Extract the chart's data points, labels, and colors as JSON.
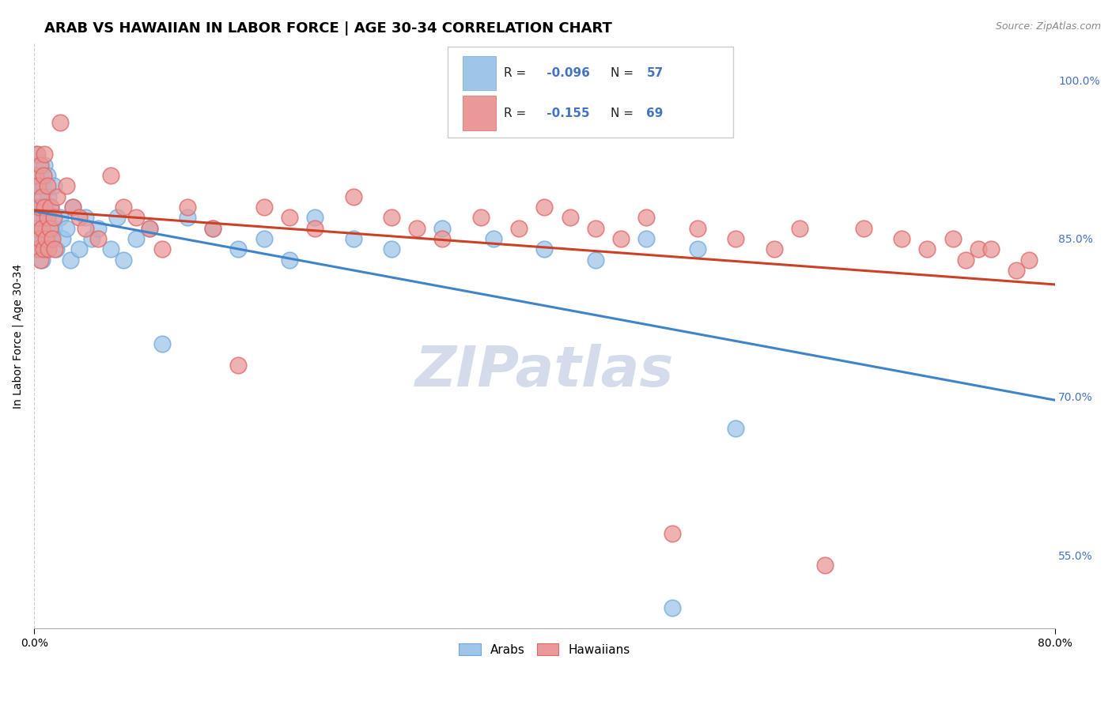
{
  "title": "ARAB VS HAWAIIAN IN LABOR FORCE | AGE 30-34 CORRELATION CHART",
  "source_text": "Source: ZipAtlas.com",
  "ylabel": "In Labor Force | Age 30-34",
  "xlim": [
    0.0,
    0.8
  ],
  "ylim": [
    0.48,
    1.035
  ],
  "xtick_values": [
    0.0,
    0.8
  ],
  "xtick_labels": [
    "0.0%",
    "80.0%"
  ],
  "ytick_values": [
    0.55,
    0.7,
    0.85,
    1.0
  ],
  "ytick_labels": [
    "55.0%",
    "70.0%",
    "85.0%",
    "100.0%"
  ],
  "arab_color": "#9fc5e8",
  "hawaiian_color": "#ea9999",
  "arab_edge_color": "#6fa8dc",
  "hawaiian_edge_color": "#e06666",
  "arab_R": -0.096,
  "arab_N": 57,
  "hawaiian_R": -0.155,
  "hawaiian_N": 69,
  "trend_line_arab_color": "#3d85c8",
  "trend_line_hawaiian_color": "#cc4125",
  "text_blue": "#4472c4",
  "watermark_color": "#d0d8e8",
  "background_color": "#ffffff",
  "grid_color": "#cccccc",
  "title_fontsize": 13,
  "axis_label_fontsize": 10,
  "tick_fontsize": 10,
  "arab_x": [
    0.001,
    0.001,
    0.002,
    0.002,
    0.003,
    0.003,
    0.004,
    0.004,
    0.005,
    0.005,
    0.006,
    0.006,
    0.007,
    0.007,
    0.008,
    0.008,
    0.009,
    0.009,
    0.01,
    0.01,
    0.011,
    0.012,
    0.013,
    0.015,
    0.015,
    0.017,
    0.02,
    0.022,
    0.025,
    0.028,
    0.03,
    0.035,
    0.04,
    0.045,
    0.05,
    0.06,
    0.065,
    0.07,
    0.08,
    0.09,
    0.1,
    0.12,
    0.14,
    0.16,
    0.18,
    0.2,
    0.22,
    0.25,
    0.28,
    0.32,
    0.36,
    0.4,
    0.44,
    0.48,
    0.5,
    0.52,
    0.55
  ],
  "arab_y": [
    0.93,
    0.88,
    0.9,
    0.85,
    0.92,
    0.87,
    0.89,
    0.84,
    0.91,
    0.86,
    0.88,
    0.83,
    0.9,
    0.85,
    0.87,
    0.92,
    0.84,
    0.88,
    0.86,
    0.91,
    0.89,
    0.85,
    0.88,
    0.86,
    0.9,
    0.84,
    0.87,
    0.85,
    0.86,
    0.83,
    0.88,
    0.84,
    0.87,
    0.85,
    0.86,
    0.84,
    0.87,
    0.83,
    0.85,
    0.86,
    0.75,
    0.87,
    0.86,
    0.84,
    0.85,
    0.83,
    0.87,
    0.85,
    0.84,
    0.86,
    0.85,
    0.84,
    0.83,
    0.85,
    0.5,
    0.84,
    0.67
  ],
  "hawaiian_x": [
    0.001,
    0.001,
    0.002,
    0.002,
    0.003,
    0.003,
    0.004,
    0.004,
    0.005,
    0.005,
    0.006,
    0.006,
    0.007,
    0.007,
    0.008,
    0.008,
    0.009,
    0.01,
    0.01,
    0.011,
    0.012,
    0.013,
    0.014,
    0.015,
    0.016,
    0.018,
    0.02,
    0.025,
    0.03,
    0.035,
    0.04,
    0.05,
    0.06,
    0.07,
    0.08,
    0.09,
    0.1,
    0.12,
    0.14,
    0.16,
    0.18,
    0.2,
    0.22,
    0.25,
    0.28,
    0.3,
    0.32,
    0.35,
    0.38,
    0.4,
    0.42,
    0.44,
    0.46,
    0.48,
    0.5,
    0.52,
    0.55,
    0.58,
    0.6,
    0.62,
    0.65,
    0.68,
    0.7,
    0.72,
    0.73,
    0.74,
    0.75,
    0.77,
    0.78
  ],
  "hawaiian_y": [
    0.91,
    0.86,
    0.93,
    0.84,
    0.9,
    0.87,
    0.88,
    0.85,
    0.92,
    0.83,
    0.89,
    0.86,
    0.91,
    0.84,
    0.88,
    0.93,
    0.85,
    0.87,
    0.9,
    0.84,
    0.86,
    0.88,
    0.85,
    0.87,
    0.84,
    0.89,
    0.96,
    0.9,
    0.88,
    0.87,
    0.86,
    0.85,
    0.91,
    0.88,
    0.87,
    0.86,
    0.84,
    0.88,
    0.86,
    0.73,
    0.88,
    0.87,
    0.86,
    0.89,
    0.87,
    0.86,
    0.85,
    0.87,
    0.86,
    0.88,
    0.87,
    0.86,
    0.85,
    0.87,
    0.57,
    0.86,
    0.85,
    0.84,
    0.86,
    0.54,
    0.86,
    0.85,
    0.84,
    0.85,
    0.83,
    0.84,
    0.84,
    0.82,
    0.83
  ]
}
